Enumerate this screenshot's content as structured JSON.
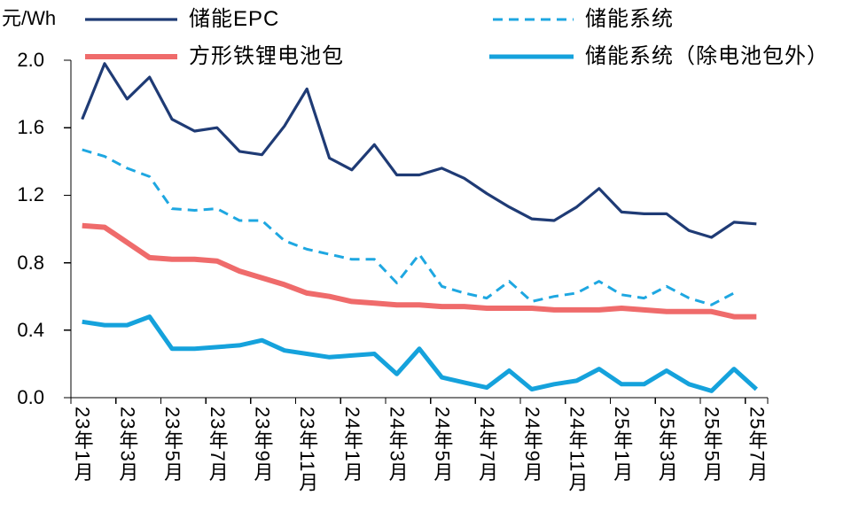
{
  "chart_data": {
    "type": "line",
    "ylabel": "元/Wh",
    "ylim": [
      0,
      2.0
    ],
    "ytick_labels": [
      "0.0",
      "0.4",
      "0.8",
      "1.2",
      "1.6",
      "2.0"
    ],
    "grid": false,
    "legend_position": "top",
    "categories": [
      "23年1月",
      "",
      "23年3月",
      "",
      "23年5月",
      "",
      "23年7月",
      "",
      "23年9月",
      "",
      "23年11月",
      "",
      "24年1月",
      "",
      "24年3月",
      "",
      "24年5月",
      "",
      "24年7月",
      "",
      "24年9月",
      "",
      "24年11月",
      "",
      "25年1月",
      "",
      "25年3月",
      "",
      "25年5月",
      "",
      "25年7月"
    ],
    "series": [
      {
        "name": "储能EPC",
        "color": "#1f3b75",
        "line_style": "solid",
        "values": [
          1.65,
          1.98,
          1.77,
          1.9,
          1.65,
          1.58,
          1.6,
          1.46,
          1.44,
          1.61,
          1.83,
          1.42,
          1.35,
          1.5,
          1.32,
          1.32,
          1.36,
          1.3,
          1.21,
          1.13,
          1.06,
          1.05,
          1.13,
          1.24,
          1.1,
          1.09,
          1.09,
          0.99,
          0.95,
          1.04,
          1.03
        ]
      },
      {
        "name": "储能系统",
        "color": "#1ea7e1",
        "line_style": "dashed",
        "values": [
          1.47,
          1.43,
          1.36,
          1.31,
          1.12,
          1.11,
          1.12,
          1.05,
          1.05,
          0.93,
          0.88,
          0.85,
          0.82,
          0.82,
          0.68,
          0.85,
          0.66,
          0.62,
          0.59,
          0.69,
          0.57,
          0.6,
          0.62,
          0.69,
          0.61,
          0.59,
          0.66,
          0.59,
          0.55,
          0.62,
          null
        ]
      },
      {
        "name": "方形铁锂电池包",
        "color": "#ef6b6b",
        "line_style": "solid",
        "values": [
          1.02,
          1.01,
          0.92,
          0.83,
          0.82,
          0.82,
          0.81,
          0.75,
          0.71,
          0.67,
          0.62,
          0.6,
          0.57,
          0.56,
          0.55,
          0.55,
          0.54,
          0.54,
          0.53,
          0.53,
          0.53,
          0.52,
          0.52,
          0.52,
          0.53,
          0.52,
          0.51,
          0.51,
          0.51,
          0.48,
          0.48
        ]
      },
      {
        "name": "储能系统（除电池包外）",
        "color": "#15a2dc",
        "line_style": "solid",
        "values": [
          0.45,
          0.43,
          0.43,
          0.48,
          0.29,
          0.29,
          0.3,
          0.31,
          0.34,
          0.28,
          0.26,
          0.24,
          0.25,
          0.26,
          0.14,
          0.29,
          0.12,
          0.09,
          0.06,
          0.16,
          0.05,
          0.08,
          0.1,
          0.17,
          0.08,
          0.08,
          0.16,
          0.08,
          0.04,
          0.17,
          0.05
        ]
      }
    ]
  }
}
